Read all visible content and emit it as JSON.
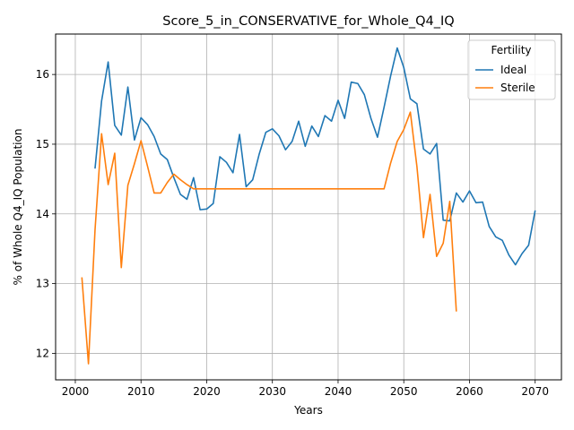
{
  "chart_data": {
    "type": "line",
    "title": "Score_5_in_CONSERVATIVE_for_Whole_Q4_IQ",
    "xlabel": "Years",
    "ylabel": "% of Whole Q4_IQ Population",
    "xlim": [
      1997,
      2074
    ],
    "ylim": [
      11.62,
      16.58
    ],
    "xticks": [
      2000,
      2010,
      2020,
      2030,
      2040,
      2050,
      2060,
      2070
    ],
    "yticks": [
      12,
      13,
      14,
      15,
      16
    ],
    "grid": true,
    "legend": {
      "title": "Fertility",
      "placement": "top-right"
    },
    "series": [
      {
        "name": "Ideal",
        "color": "#1f77b4",
        "x": [
          2003,
          2004,
          2005,
          2006,
          2007,
          2008,
          2009,
          2010,
          2011,
          2012,
          2013,
          2014,
          2015,
          2016,
          2017,
          2018,
          2019,
          2020,
          2021,
          2022,
          2023,
          2024,
          2025,
          2026,
          2027,
          2028,
          2029,
          2030,
          2031,
          2032,
          2033,
          2034,
          2035,
          2036,
          2037,
          2038,
          2039,
          2040,
          2041,
          2042,
          2043,
          2044,
          2045,
          2046,
          2047,
          2048,
          2049,
          2050,
          2051,
          2052,
          2053,
          2054,
          2055,
          2056,
          2057,
          2058,
          2059,
          2060,
          2061,
          2062,
          2063,
          2064,
          2065,
          2066,
          2067,
          2068,
          2069,
          2070
        ],
        "y": [
          14.65,
          15.62,
          16.18,
          15.27,
          15.13,
          15.82,
          15.06,
          15.38,
          15.28,
          15.11,
          14.86,
          14.78,
          14.52,
          14.28,
          14.21,
          14.52,
          14.06,
          14.07,
          14.15,
          14.82,
          14.74,
          14.59,
          15.14,
          14.39,
          14.49,
          14.86,
          15.17,
          15.22,
          15.12,
          14.92,
          15.04,
          15.33,
          14.97,
          15.26,
          15.11,
          15.41,
          15.33,
          15.63,
          15.37,
          15.89,
          15.87,
          15.71,
          15.37,
          15.1,
          15.53,
          15.98,
          16.38,
          16.1,
          15.65,
          15.58,
          14.93,
          14.86,
          15.01,
          13.91,
          13.9,
          14.3,
          14.17,
          14.33,
          14.16,
          14.17,
          13.82,
          13.67,
          13.62,
          13.41,
          13.27,
          13.43,
          13.55,
          14.05
        ]
      },
      {
        "name": "Sterile",
        "color": "#ff7f0e",
        "x": [
          2001,
          2002,
          2003,
          2004,
          2005,
          2006,
          2007,
          2008,
          2009,
          2010,
          2011,
          2012,
          2013,
          2014,
          2015,
          2016,
          2017,
          2018,
          2019,
          2020,
          2021,
          2022,
          2023,
          2024,
          2025,
          2026,
          2027,
          2028,
          2029,
          2030,
          2031,
          2032,
          2033,
          2034,
          2035,
          2036,
          2037,
          2038,
          2039,
          2040,
          2041,
          2042,
          2043,
          2044,
          2045,
          2046,
          2047,
          2048,
          2049,
          2050,
          2051,
          2052,
          2053,
          2054,
          2055,
          2056,
          2057,
          2058
        ],
        "y": [
          13.09,
          11.85,
          13.77,
          15.15,
          14.42,
          14.87,
          13.23,
          14.41,
          14.72,
          15.05,
          14.68,
          14.3,
          14.3,
          14.45,
          14.57,
          14.49,
          14.42,
          14.36,
          14.36,
          14.36,
          14.36,
          14.36,
          14.36,
          14.36,
          14.36,
          14.36,
          14.36,
          14.36,
          14.36,
          14.36,
          14.36,
          14.36,
          14.36,
          14.36,
          14.36,
          14.36,
          14.36,
          14.36,
          14.36,
          14.36,
          14.36,
          14.36,
          14.36,
          14.36,
          14.36,
          14.36,
          14.36,
          14.73,
          15.04,
          15.21,
          15.46,
          14.68,
          13.66,
          14.28,
          13.39,
          13.58,
          14.18,
          12.6
        ]
      }
    ]
  }
}
